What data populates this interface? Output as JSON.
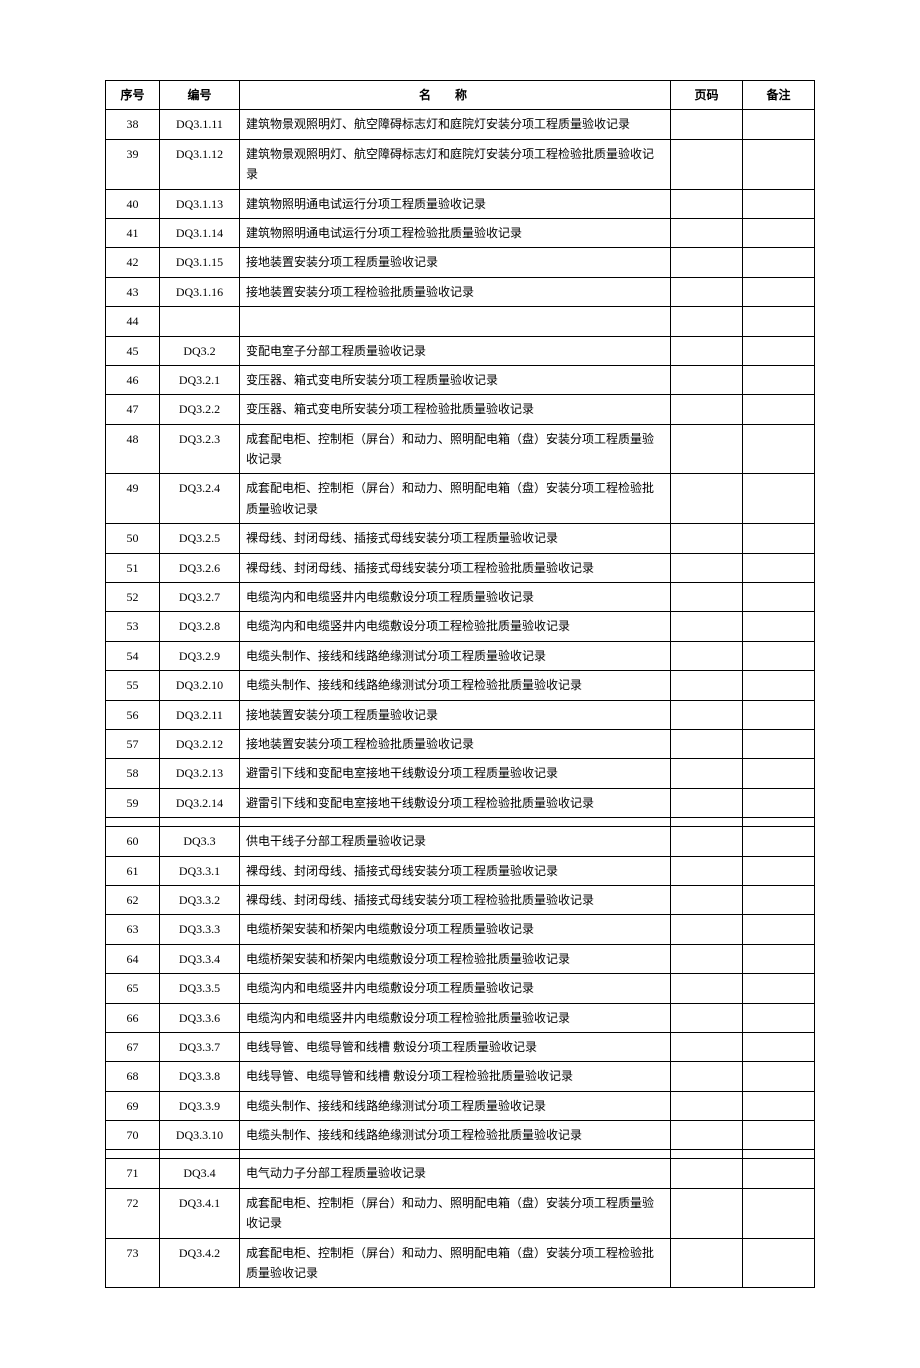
{
  "table": {
    "headers": {
      "seq": "序号",
      "code": "编号",
      "name": "名称",
      "page": "页码",
      "note": "备注"
    },
    "rows": [
      {
        "seq": "38",
        "code": "DQ3.1.11",
        "name": "建筑物景观照明灯、航空障碍标志灯和庭院灯安装分项工程质量验收记录",
        "page": "",
        "note": ""
      },
      {
        "seq": "39",
        "code": "DQ3.1.12",
        "name": "建筑物景观照明灯、航空障碍标志灯和庭院灯安装分项工程检验批质量验收记录",
        "page": "",
        "note": ""
      },
      {
        "seq": "40",
        "code": "DQ3.1.13",
        "name": "建筑物照明通电试运行分项工程质量验收记录",
        "page": "",
        "note": ""
      },
      {
        "seq": "41",
        "code": "DQ3.1.14",
        "name": "建筑物照明通电试运行分项工程检验批质量验收记录",
        "page": "",
        "note": ""
      },
      {
        "seq": "42",
        "code": "DQ3.1.15",
        "name": "接地装置安装分项工程质量验收记录",
        "page": "",
        "note": ""
      },
      {
        "seq": "43",
        "code": "DQ3.1.16",
        "name": "接地装置安装分项工程检验批质量验收记录",
        "page": "",
        "note": ""
      },
      {
        "seq": "44",
        "code": "",
        "name": "",
        "page": "",
        "note": ""
      },
      {
        "seq": "45",
        "code": "DQ3.2",
        "name": "变配电室子分部工程质量验收记录",
        "page": "",
        "note": ""
      },
      {
        "seq": "46",
        "code": "DQ3.2.1",
        "name": "变压器、箱式变电所安装分项工程质量验收记录",
        "page": "",
        "note": ""
      },
      {
        "seq": "47",
        "code": "DQ3.2.2",
        "name": "变压器、箱式变电所安装分项工程检验批质量验收记录",
        "page": "",
        "note": ""
      },
      {
        "seq": "48",
        "code": "DQ3.2.3",
        "name": "成套配电柜、控制柜（屏台）和动力、照明配电箱（盘）安装分项工程质量验收记录",
        "page": "",
        "note": ""
      },
      {
        "seq": "49",
        "code": "DQ3.2.4",
        "name": "成套配电柜、控制柜（屏台）和动力、照明配电箱（盘）安装分项工程检验批质量验收记录",
        "page": "",
        "note": ""
      },
      {
        "seq": "50",
        "code": "DQ3.2.5",
        "name": "裸母线、封闭母线、插接式母线安装分项工程质量验收记录",
        "page": "",
        "note": ""
      },
      {
        "seq": "51",
        "code": "DQ3.2.6",
        "name": "裸母线、封闭母线、插接式母线安装分项工程检验批质量验收记录",
        "page": "",
        "note": ""
      },
      {
        "seq": "52",
        "code": "DQ3.2.7",
        "name": "电缆沟内和电缆竖井内电缆敷设分项工程质量验收记录",
        "page": "",
        "note": ""
      },
      {
        "seq": "53",
        "code": "DQ3.2.8",
        "name": "电缆沟内和电缆竖井内电缆敷设分项工程检验批质量验收记录",
        "page": "",
        "note": ""
      },
      {
        "seq": "54",
        "code": "DQ3.2.9",
        "name": "电缆头制作、接线和线路绝缘测试分项工程质量验收记录",
        "page": "",
        "note": ""
      },
      {
        "seq": "55",
        "code": "DQ3.2.10",
        "name": "电缆头制作、接线和线路绝缘测试分项工程检验批质量验收记录",
        "page": "",
        "note": ""
      },
      {
        "seq": "56",
        "code": "DQ3.2.11",
        "name": "接地装置安装分项工程质量验收记录",
        "page": "",
        "note": ""
      },
      {
        "seq": "57",
        "code": "DQ3.2.12",
        "name": "接地装置安装分项工程检验批质量验收记录",
        "page": "",
        "note": ""
      },
      {
        "seq": "58",
        "code": "DQ3.2.13",
        "name": "避雷引下线和变配电室接地干线敷设分项工程质量验收记录",
        "page": "",
        "note": ""
      },
      {
        "seq": "59",
        "code": "DQ3.2.14",
        "name": "避雷引下线和变配电室接地干线敷设分项工程检验批质量验收记录",
        "page": "",
        "note": ""
      },
      {
        "seq": "",
        "code": "",
        "name": "",
        "page": "",
        "note": ""
      },
      {
        "seq": "60",
        "code": "DQ3.3",
        "name": "供电干线子分部工程质量验收记录",
        "page": "",
        "note": ""
      },
      {
        "seq": "61",
        "code": "DQ3.3.1",
        "name": "裸母线、封闭母线、插接式母线安装分项工程质量验收记录",
        "page": "",
        "note": ""
      },
      {
        "seq": "62",
        "code": "DQ3.3.2",
        "name": "裸母线、封闭母线、插接式母线安装分项工程检验批质量验收记录",
        "page": "",
        "note": ""
      },
      {
        "seq": "63",
        "code": "DQ3.3.3",
        "name": "电缆桥架安装和桥架内电缆敷设分项工程质量验收记录",
        "page": "",
        "note": ""
      },
      {
        "seq": "64",
        "code": "DQ3.3.4",
        "name": "电缆桥架安装和桥架内电缆敷设分项工程检验批质量验收记录",
        "page": "",
        "note": ""
      },
      {
        "seq": "65",
        "code": "DQ3.3.5",
        "name": "电缆沟内和电缆竖井内电缆敷设分项工程质量验收记录",
        "page": "",
        "note": ""
      },
      {
        "seq": "66",
        "code": "DQ3.3.6",
        "name": "电缆沟内和电缆竖井内电缆敷设分项工程检验批质量验收记录",
        "page": "",
        "note": ""
      },
      {
        "seq": "67",
        "code": "DQ3.3.7",
        "name": "电线导管、电缆导管和线槽 敷设分项工程质量验收记录",
        "page": "",
        "note": ""
      },
      {
        "seq": "68",
        "code": "DQ3.3.8",
        "name": "电线导管、电缆导管和线槽 敷设分项工程检验批质量验收记录",
        "page": "",
        "note": ""
      },
      {
        "seq": "69",
        "code": "DQ3.3.9",
        "name": "电缆头制作、接线和线路绝缘测试分项工程质量验收记录",
        "page": "",
        "note": ""
      },
      {
        "seq": "70",
        "code": "DQ3.3.10",
        "name": "电缆头制作、接线和线路绝缘测试分项工程检验批质量验收记录",
        "page": "",
        "note": ""
      },
      {
        "seq": "",
        "code": "",
        "name": "",
        "page": "",
        "note": ""
      },
      {
        "seq": "71",
        "code": "DQ3.4",
        "name": "电气动力子分部工程质量验收记录",
        "page": "",
        "note": ""
      },
      {
        "seq": "72",
        "code": "DQ3.4.1",
        "name": "成套配电柜、控制柜（屏台）和动力、照明配电箱（盘）安装分项工程质量验收记录",
        "page": "",
        "note": ""
      },
      {
        "seq": "73",
        "code": "DQ3.4.2",
        "name": "成套配电柜、控制柜（屏台）和动力、照明配电箱（盘）安装分项工程检验批质量验收记录",
        "page": "",
        "note": ""
      }
    ]
  }
}
